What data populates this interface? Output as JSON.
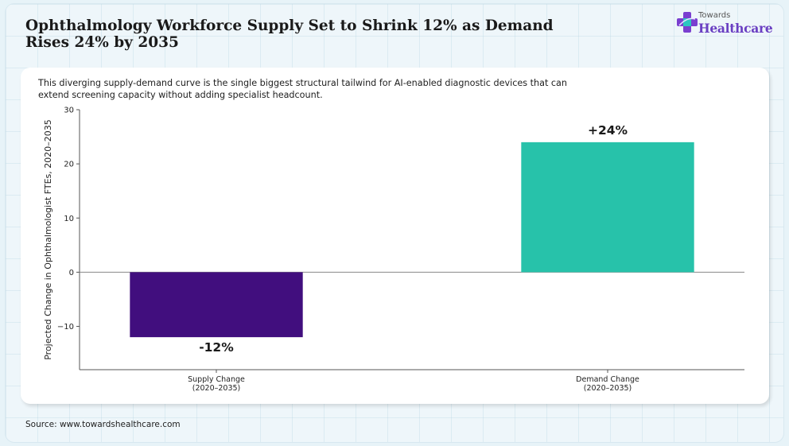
{
  "header": {
    "title": "Ophthalmology Workforce Supply Set to Shrink 12% as Demand Rises 24% by 2035",
    "subtitle": "This diverging supply-demand curve is the single biggest structural tailwind for AI-enabled diagnostic devices that can extend screening capacity without adding specialist headcount."
  },
  "logo": {
    "line1": "Towards",
    "line2": "Healthcare",
    "icon": "medical-cross-icon"
  },
  "footer": {
    "source": "Source: www.towardshealthcare.com"
  },
  "colors": {
    "supply": "#410e7e",
    "demand": "#27c2aa",
    "accent": "#6a3fc2"
  },
  "chart_data": {
    "type": "bar",
    "categories": [
      "Supply Change\n(2020–2035)",
      "Demand Change\n(2020–2035)"
    ],
    "values": [
      -12,
      24
    ],
    "data_labels": [
      "-12%",
      "+24%"
    ],
    "xlabel": "",
    "ylabel": "Projected Change in Ophthalmologist FTEs, 2020–2035",
    "ylim": [
      -18,
      30
    ],
    "yticks": [
      -10,
      0,
      10,
      20,
      30
    ],
    "grid": false,
    "bar_colors": [
      "#410e7e",
      "#27c2aa"
    ]
  }
}
